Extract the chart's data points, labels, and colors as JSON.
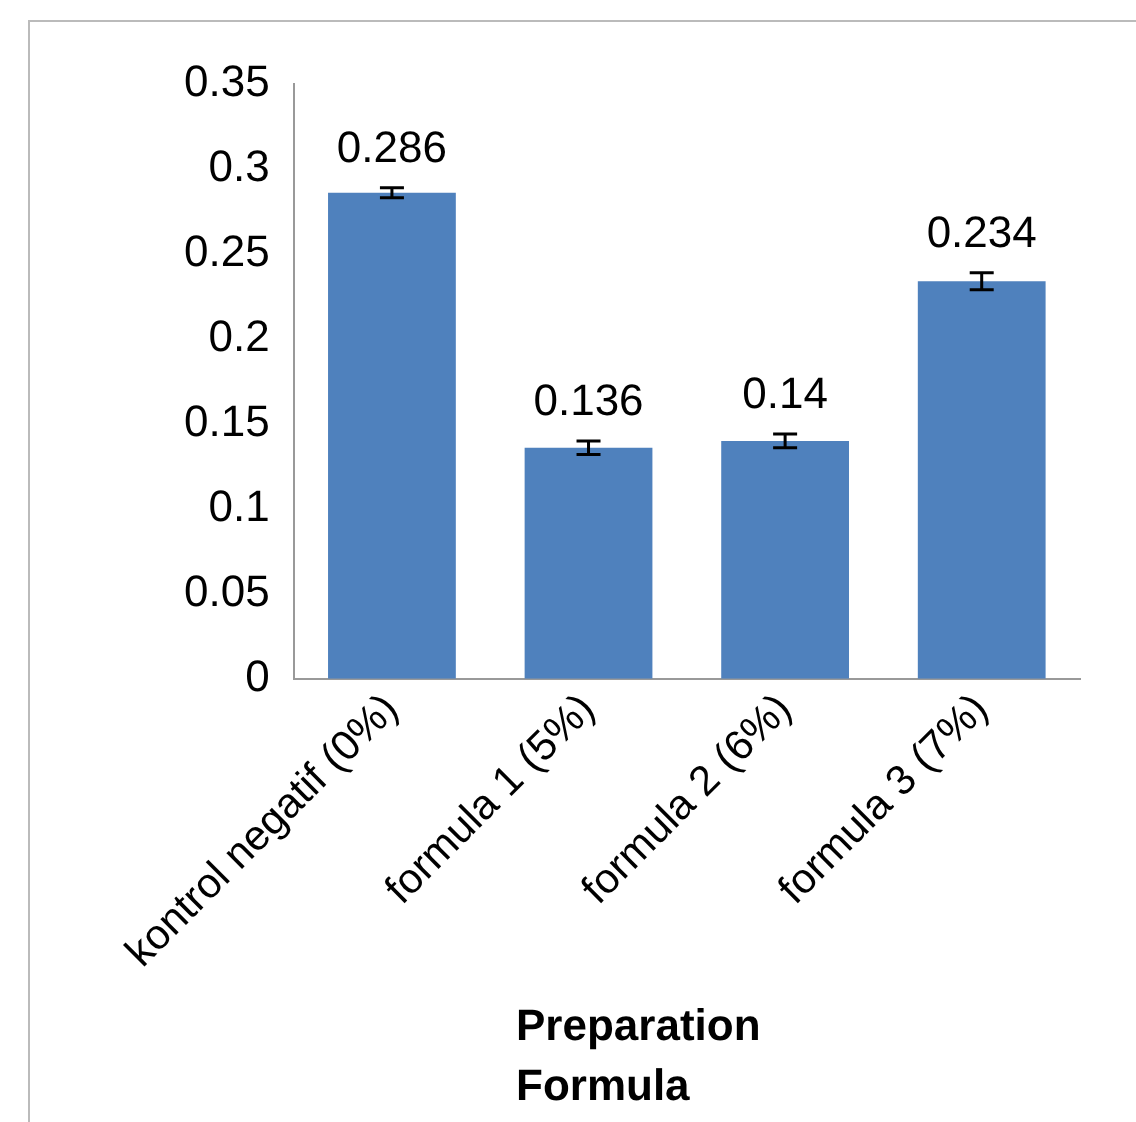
{
  "chart_data": {
    "type": "bar",
    "xlabel": "Preparation Formula",
    "categories": [
      "kontrol negatif (0%)",
      "formula 1 (5%)",
      "formula 2 (6%)",
      "formula 3 (7%)"
    ],
    "values": [
      0.286,
      0.136,
      0.14,
      0.234
    ],
    "errors": [
      0.003,
      0.004,
      0.004,
      0.005
    ],
    "color": "#4f81bd",
    "ylim": [
      0,
      0.35
    ],
    "yticks": [
      0,
      0.05,
      0.1,
      0.15,
      0.2,
      0.25,
      0.3,
      0.35
    ],
    "data_labels": true,
    "grid": false,
    "legend": false
  }
}
